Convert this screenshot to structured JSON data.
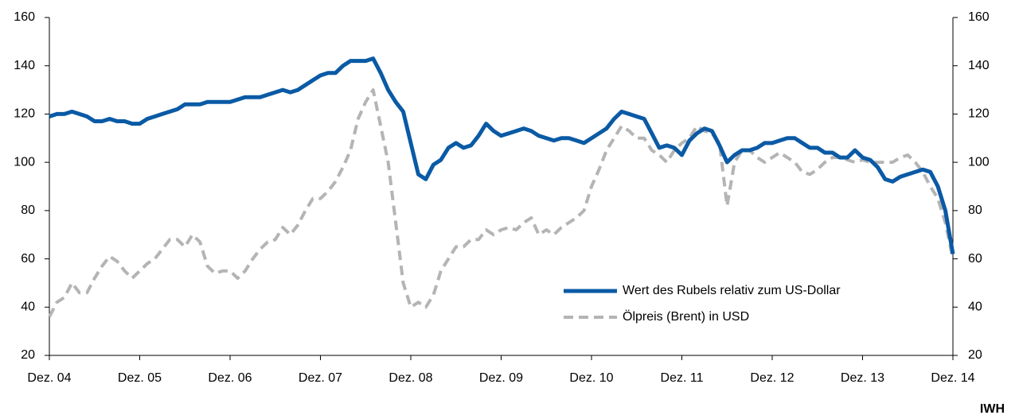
{
  "chart_data": {
    "type": "line",
    "categories": [
      "Dez. 04",
      null,
      null,
      null,
      null,
      null,
      null,
      null,
      null,
      null,
      null,
      null,
      "Dez. 05",
      null,
      null,
      null,
      null,
      null,
      null,
      null,
      null,
      null,
      null,
      null,
      "Dez. 06",
      null,
      null,
      null,
      null,
      null,
      null,
      null,
      null,
      null,
      null,
      null,
      "Dez. 07",
      null,
      null,
      null,
      null,
      null,
      null,
      null,
      null,
      null,
      null,
      null,
      "Dez. 08",
      null,
      null,
      null,
      null,
      null,
      null,
      null,
      null,
      null,
      null,
      null,
      "Dez. 09",
      null,
      null,
      null,
      null,
      null,
      null,
      null,
      null,
      null,
      null,
      null,
      "Dez. 10",
      null,
      null,
      null,
      null,
      null,
      null,
      null,
      null,
      null,
      null,
      null,
      "Dez. 11",
      null,
      null,
      null,
      null,
      null,
      null,
      null,
      null,
      null,
      null,
      null,
      "Dez. 12",
      null,
      null,
      null,
      null,
      null,
      null,
      null,
      null,
      null,
      null,
      null,
      "Dez. 13",
      null,
      null,
      null,
      null,
      null,
      null,
      null,
      null,
      null,
      null,
      null,
      "Dez. 14"
    ],
    "series": [
      {
        "name": "Wert des Rubels relativ zum US-Dollar",
        "color": "#0a5aa5",
        "line_style": "solid",
        "axis": "y",
        "values": [
          119,
          120,
          120,
          121,
          120,
          119,
          117,
          117,
          118,
          117,
          117,
          116,
          116,
          118,
          119,
          120,
          121,
          122,
          124,
          124,
          124,
          125,
          125,
          125,
          125,
          126,
          127,
          127,
          127,
          128,
          129,
          130,
          129,
          130,
          132,
          134,
          136,
          137,
          137,
          140,
          142,
          142,
          142,
          143,
          137,
          130,
          125,
          121,
          108,
          95,
          93,
          99,
          101,
          106,
          108,
          106,
          107,
          111,
          116,
          113,
          111,
          112,
          113,
          114,
          113,
          111,
          110,
          109,
          110,
          110,
          109,
          108,
          110,
          112,
          114,
          118,
          121,
          120,
          119,
          118,
          112,
          106,
          107,
          106,
          103,
          109,
          112,
          114,
          113,
          107,
          100,
          103,
          105,
          105,
          106,
          108,
          108,
          109,
          110,
          110,
          108,
          106,
          106,
          104,
          104,
          102,
          102,
          105,
          102,
          101,
          98,
          93,
          92,
          94,
          95,
          96,
          97,
          96,
          90,
          80,
          62
        ]
      },
      {
        "name": "Ölpreis (Brent) in USD",
        "color": "#b4b4b4",
        "line_style": "dashed",
        "axis": "y2",
        "values": [
          36,
          42,
          44,
          50,
          46,
          46,
          52,
          57,
          61,
          59,
          55,
          52,
          55,
          58,
          60,
          64,
          68,
          68,
          65,
          70,
          67,
          57,
          54,
          55,
          55,
          52,
          55,
          60,
          64,
          67,
          68,
          73,
          70,
          74,
          80,
          85,
          85,
          88,
          92,
          98,
          105,
          118,
          125,
          130,
          115,
          100,
          75,
          50,
          40,
          42,
          40,
          45,
          55,
          60,
          65,
          65,
          68,
          68,
          72,
          70,
          72,
          73,
          72,
          75,
          77,
          70,
          72,
          70,
          73,
          75,
          77,
          80,
          90,
          97,
          105,
          110,
          115,
          113,
          110,
          110,
          105,
          103,
          100,
          105,
          108,
          110,
          115,
          113,
          112,
          108,
          82,
          100,
          105,
          105,
          102,
          100,
          102,
          104,
          102,
          100,
          96,
          95,
          97,
          100,
          102,
          102,
          101,
          100,
          101,
          100,
          100,
          100,
          100,
          102,
          103,
          100,
          96,
          90,
          85,
          75,
          60
        ]
      }
    ],
    "ylim": [
      20,
      160
    ],
    "yticks": [
      20,
      40,
      60,
      80,
      100,
      120,
      140,
      160
    ],
    "y2lim": [
      20,
      160
    ],
    "y2ticks": [
      20,
      40,
      60,
      80,
      100,
      120,
      140,
      160
    ],
    "grid": false,
    "source": "IWH"
  }
}
